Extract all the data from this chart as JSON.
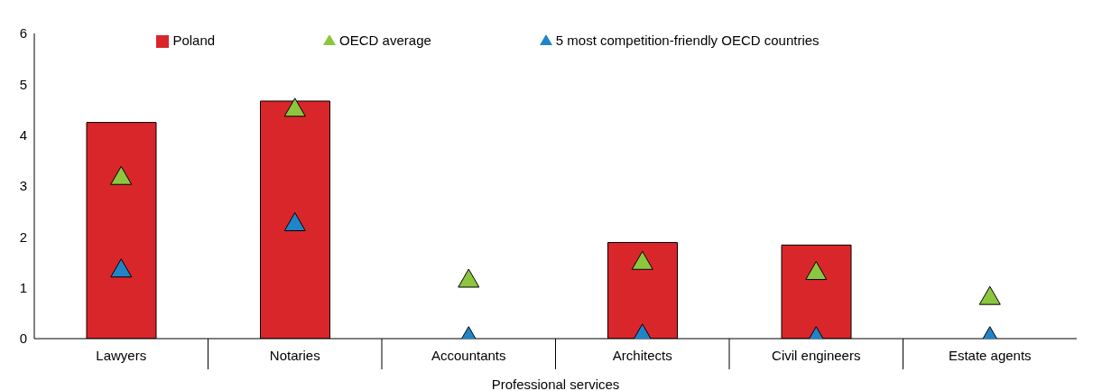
{
  "chart_data": {
    "type": "bar",
    "xlabel": "Professional services",
    "categories": [
      "Lawyers",
      "Notaries",
      "Accountants",
      "Architects",
      "Civil engineers",
      "Estate agents"
    ],
    "series": [
      {
        "name": "Poland",
        "color": "#d9262b",
        "values": [
          4.25,
          4.67,
          0,
          1.89,
          1.84,
          0
        ]
      },
      {
        "name": "OECD average",
        "type": "scatter",
        "color": "#8cc63f",
        "values": [
          3.15,
          4.49,
          1.13,
          1.48,
          1.28,
          0.79
        ]
      },
      {
        "name": "5 most competition-friendly OECD countries",
        "type": "scatter",
        "color": "#1f85c8",
        "values": [
          1.33,
          2.24,
          0,
          0.05,
          0,
          0
        ]
      }
    ],
    "ylim": [
      0,
      6
    ],
    "yticks": [
      0,
      1,
      2,
      3,
      4,
      5,
      6
    ],
    "legend": "top",
    "marker": "triangle"
  }
}
